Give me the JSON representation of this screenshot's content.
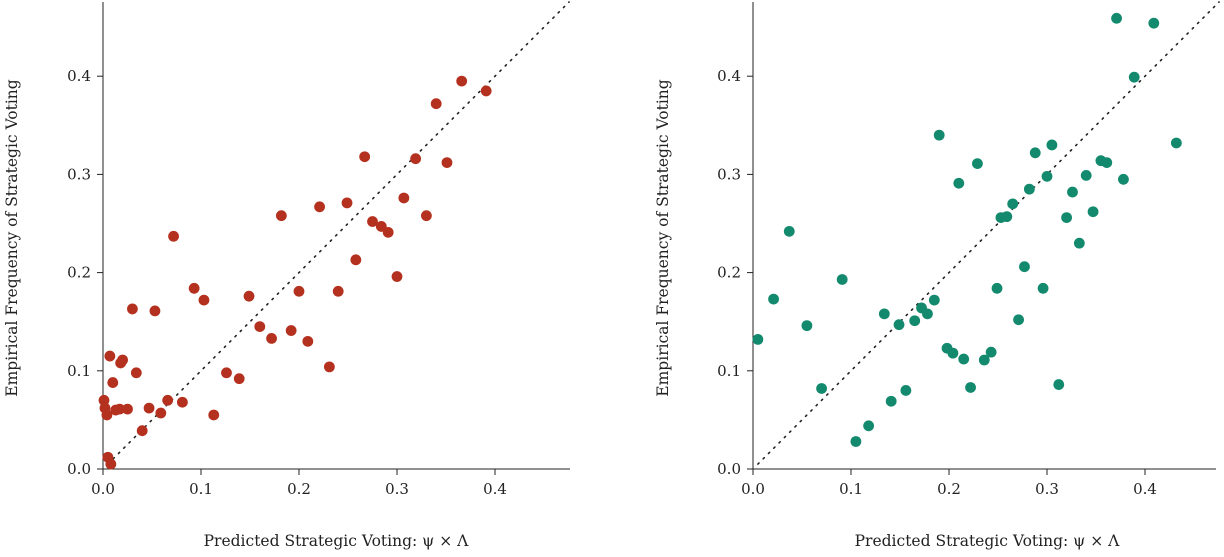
{
  "chart_data": [
    {
      "type": "scatter",
      "xlabel": "Predicted Strategic Voting: ψ × Λ",
      "ylabel": "Empirical Frequency of Strategic Voting",
      "xlim": [
        0,
        0.47
      ],
      "ylim": [
        0,
        0.47
      ],
      "xticks": [
        "0.0",
        "0.1",
        "0.2",
        "0.3",
        "0.4"
      ],
      "yticks": [
        "0.0",
        "0.1",
        "0.2",
        "0.3",
        "0.4"
      ],
      "grid": false,
      "reference_line": "y = x (dotted)",
      "point_color": "#b5311f",
      "series": [
        {
          "points": [
            [
              0.001,
              0.07
            ],
            [
              0.002,
              0.062
            ],
            [
              0.004,
              0.055
            ],
            [
              0.005,
              0.012
            ],
            [
              0.007,
              0.115
            ],
            [
              0.008,
              0.005
            ],
            [
              0.01,
              0.088
            ],
            [
              0.013,
              0.06
            ],
            [
              0.017,
              0.061
            ],
            [
              0.018,
              0.108
            ],
            [
              0.02,
              0.111
            ],
            [
              0.025,
              0.061
            ],
            [
              0.03,
              0.163
            ],
            [
              0.034,
              0.098
            ],
            [
              0.04,
              0.039
            ],
            [
              0.047,
              0.062
            ],
            [
              0.053,
              0.161
            ],
            [
              0.059,
              0.057
            ],
            [
              0.066,
              0.07
            ],
            [
              0.072,
              0.237
            ],
            [
              0.081,
              0.068
            ],
            [
              0.093,
              0.184
            ],
            [
              0.103,
              0.172
            ],
            [
              0.113,
              0.055
            ],
            [
              0.126,
              0.098
            ],
            [
              0.139,
              0.092
            ],
            [
              0.149,
              0.176
            ],
            [
              0.16,
              0.145
            ],
            [
              0.172,
              0.133
            ],
            [
              0.182,
              0.258
            ],
            [
              0.192,
              0.141
            ],
            [
              0.2,
              0.181
            ],
            [
              0.209,
              0.13
            ],
            [
              0.221,
              0.267
            ],
            [
              0.231,
              0.104
            ],
            [
              0.24,
              0.181
            ],
            [
              0.249,
              0.271
            ],
            [
              0.258,
              0.213
            ],
            [
              0.267,
              0.318
            ],
            [
              0.275,
              0.252
            ],
            [
              0.284,
              0.247
            ],
            [
              0.291,
              0.241
            ],
            [
              0.3,
              0.196
            ],
            [
              0.307,
              0.276
            ],
            [
              0.319,
              0.316
            ],
            [
              0.33,
              0.258
            ],
            [
              0.34,
              0.372
            ],
            [
              0.351,
              0.312
            ],
            [
              0.366,
              0.395
            ],
            [
              0.391,
              0.385
            ]
          ]
        }
      ]
    },
    {
      "type": "scatter",
      "xlabel": "Predicted Strategic Voting: ψ × Λ",
      "ylabel": "Empirical Frequency of Strategic Voting",
      "xlim": [
        0,
        0.47
      ],
      "ylim": [
        0,
        0.47
      ],
      "xticks": [
        "0.0",
        "0.1",
        "0.2",
        "0.3",
        "0.4"
      ],
      "yticks": [
        "0.0",
        "0.1",
        "0.2",
        "0.3",
        "0.4"
      ],
      "grid": false,
      "reference_line": "y = x (dotted)",
      "point_color": "#138a6e",
      "series": [
        {
          "points": [
            [
              0.005,
              0.132
            ],
            [
              0.021,
              0.173
            ],
            [
              0.037,
              0.242
            ],
            [
              0.055,
              0.146
            ],
            [
              0.07,
              0.082
            ],
            [
              0.091,
              0.193
            ],
            [
              0.105,
              0.028
            ],
            [
              0.118,
              0.044
            ],
            [
              0.134,
              0.158
            ],
            [
              0.141,
              0.069
            ],
            [
              0.149,
              0.147
            ],
            [
              0.156,
              0.08
            ],
            [
              0.165,
              0.151
            ],
            [
              0.172,
              0.164
            ],
            [
              0.178,
              0.158
            ],
            [
              0.185,
              0.172
            ],
            [
              0.19,
              0.34
            ],
            [
              0.198,
              0.123
            ],
            [
              0.204,
              0.118
            ],
            [
              0.21,
              0.291
            ],
            [
              0.215,
              0.112
            ],
            [
              0.222,
              0.083
            ],
            [
              0.229,
              0.311
            ],
            [
              0.236,
              0.111
            ],
            [
              0.243,
              0.119
            ],
            [
              0.249,
              0.184
            ],
            [
              0.253,
              0.256
            ],
            [
              0.259,
              0.257
            ],
            [
              0.265,
              0.27
            ],
            [
              0.271,
              0.152
            ],
            [
              0.277,
              0.206
            ],
            [
              0.282,
              0.285
            ],
            [
              0.288,
              0.322
            ],
            [
              0.296,
              0.184
            ],
            [
              0.3,
              0.298
            ],
            [
              0.305,
              0.33
            ],
            [
              0.312,
              0.086
            ],
            [
              0.32,
              0.256
            ],
            [
              0.326,
              0.282
            ],
            [
              0.333,
              0.23
            ],
            [
              0.34,
              0.299
            ],
            [
              0.347,
              0.262
            ],
            [
              0.355,
              0.314
            ],
            [
              0.361,
              0.312
            ],
            [
              0.371,
              0.459
            ],
            [
              0.378,
              0.295
            ],
            [
              0.389,
              0.399
            ],
            [
              0.409,
              0.454
            ],
            [
              0.432,
              0.332
            ]
          ]
        }
      ]
    }
  ]
}
